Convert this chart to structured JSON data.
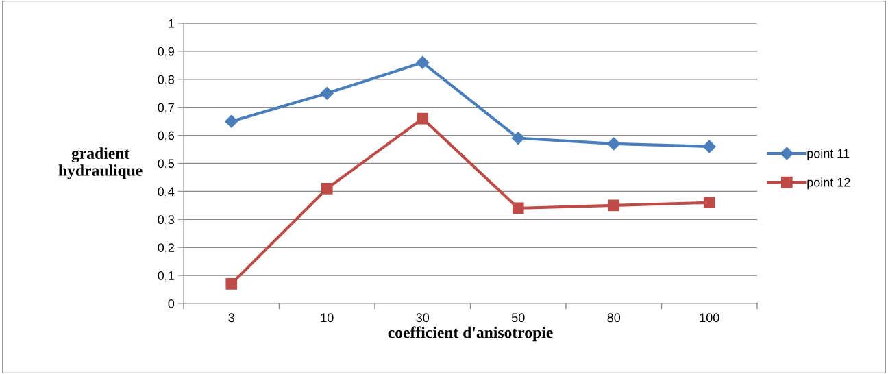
{
  "chart_data": {
    "type": "line",
    "xlabel": "coefficient d'anisotropie",
    "ylabel": "gradient\nhydraulique",
    "categories": [
      "3",
      "10",
      "30",
      "50",
      "80",
      "100"
    ],
    "series": [
      {
        "name": "point 11",
        "color": "#4a7ebb",
        "marker": "diamond",
        "values": [
          0.65,
          0.75,
          0.86,
          0.59,
          0.57,
          0.56
        ]
      },
      {
        "name": "point 12",
        "color": "#be4b48",
        "marker": "square",
        "values": [
          0.07,
          0.41,
          0.66,
          0.34,
          0.35,
          0.36
        ]
      }
    ],
    "ylim": [
      0,
      1
    ],
    "yticks": [
      0,
      {
        "value": 0.1,
        "label": "0,1"
      },
      {
        "value": 0.2,
        "label": "0,2"
      },
      {
        "value": 0.3,
        "label": "0,3"
      },
      {
        "value": 0.4,
        "label": "0,4"
      },
      {
        "value": 0.5,
        "label": "0,5"
      },
      {
        "value": 0.6,
        "label": "0,6"
      },
      {
        "value": 0.7,
        "label": "0,7"
      },
      {
        "value": 0.8,
        "label": "0,8"
      },
      {
        "value": 0.9,
        "label": "0,9"
      },
      1
    ],
    "grid": "y",
    "legend": "right",
    "line_style": "solid"
  }
}
